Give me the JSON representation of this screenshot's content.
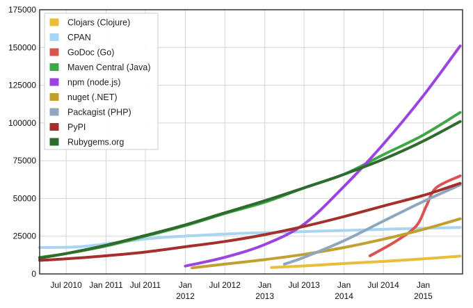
{
  "chart_data": {
    "type": "line",
    "title": "",
    "xlabel": "",
    "ylabel": "",
    "xlim": [
      "2010-03-01",
      "2015-07-01"
    ],
    "ylim": [
      0,
      175000
    ],
    "grid": true,
    "legend_placement": "top-left",
    "y_ticks": [
      {
        "value": 0,
        "label": "0"
      },
      {
        "value": 25000,
        "label": "25000"
      },
      {
        "value": 50000,
        "label": "50000"
      },
      {
        "value": 75000,
        "label": "75000"
      },
      {
        "value": 100000,
        "label": "100000"
      },
      {
        "value": 125000,
        "label": "125000"
      },
      {
        "value": 150000,
        "label": "150000"
      },
      {
        "value": 175000,
        "label": "175000"
      }
    ],
    "x_ticks": [
      {
        "date": "2010-07-01",
        "label": "Jul 2010",
        "label2": ""
      },
      {
        "date": "2011-01-01",
        "label": "Jan 2011",
        "label2": ""
      },
      {
        "date": "2011-07-01",
        "label": "Jul 2011",
        "label2": ""
      },
      {
        "date": "2012-01-01",
        "label": "Jan",
        "label2": "2012"
      },
      {
        "date": "2012-07-01",
        "label": "Jul 2012",
        "label2": ""
      },
      {
        "date": "2013-01-01",
        "label": "Jan",
        "label2": "2013"
      },
      {
        "date": "2013-07-01",
        "label": "Jul 2013",
        "label2": ""
      },
      {
        "date": "2014-01-01",
        "label": "Jan",
        "label2": "2014"
      },
      {
        "date": "2014-07-01",
        "label": "Jul 2014",
        "label2": ""
      },
      {
        "date": "2015-01-01",
        "label": "Jan",
        "label2": "2015"
      }
    ],
    "series": [
      {
        "name": "Clojars (Clojure)",
        "color": "#e8be3a",
        "points": [
          [
            "2013-02-01",
            4300
          ],
          [
            "2013-07-01",
            5300
          ],
          [
            "2014-01-01",
            6900
          ],
          [
            "2014-07-01",
            8300
          ],
          [
            "2015-01-01",
            10000
          ],
          [
            "2015-06-20",
            11800
          ]
        ]
      },
      {
        "name": "CPAN",
        "color": "#a9d4f2",
        "points": [
          [
            "2010-03-01",
            17500
          ],
          [
            "2010-09-01",
            18000
          ],
          [
            "2011-03-01",
            21000
          ],
          [
            "2011-09-01",
            24000
          ],
          [
            "2012-03-01",
            25500
          ],
          [
            "2012-09-01",
            26800
          ],
          [
            "2013-03-01",
            27500
          ],
          [
            "2013-09-01",
            28300
          ],
          [
            "2014-03-01",
            29000
          ],
          [
            "2014-09-01",
            29800
          ],
          [
            "2015-06-20",
            30800
          ]
        ]
      },
      {
        "name": "GoDoc (Go)",
        "color": "#d9534f",
        "points": [
          [
            "2014-05-01",
            12000
          ],
          [
            "2014-09-01",
            22000
          ],
          [
            "2014-12-01",
            32000
          ],
          [
            "2015-01-15",
            45000
          ],
          [
            "2015-03-01",
            57000
          ],
          [
            "2015-06-20",
            65000
          ]
        ]
      },
      {
        "name": "Maven Central (Java)",
        "color": "#3fa846",
        "points": [
          [
            "2010-03-01",
            11000
          ],
          [
            "2010-07-01",
            13500
          ],
          [
            "2011-01-01",
            18500
          ],
          [
            "2011-07-01",
            25000
          ],
          [
            "2012-01-01",
            32000
          ],
          [
            "2012-07-01",
            40000
          ],
          [
            "2013-01-01",
            47500
          ],
          [
            "2013-07-01",
            57000
          ],
          [
            "2014-01-01",
            66000
          ],
          [
            "2014-07-01",
            79000
          ],
          [
            "2015-01-01",
            92000
          ],
          [
            "2015-06-20",
            107000
          ]
        ]
      },
      {
        "name": "npm (node.js)",
        "color": "#9b45de",
        "points": [
          [
            "2012-01-01",
            5200
          ],
          [
            "2012-07-01",
            11000
          ],
          [
            "2013-01-01",
            19500
          ],
          [
            "2013-07-01",
            33000
          ],
          [
            "2014-01-01",
            58000
          ],
          [
            "2014-07-01",
            86000
          ],
          [
            "2015-01-01",
            118000
          ],
          [
            "2015-06-20",
            151000
          ]
        ]
      },
      {
        "name": "nuget (.NET)",
        "color": "#c1a030",
        "points": [
          [
            "2012-02-01",
            4000
          ],
          [
            "2012-07-01",
            6500
          ],
          [
            "2013-01-01",
            9500
          ],
          [
            "2013-07-01",
            13000
          ],
          [
            "2014-01-01",
            17500
          ],
          [
            "2014-07-01",
            23000
          ],
          [
            "2015-01-01",
            29500
          ],
          [
            "2015-06-20",
            36500
          ]
        ]
      },
      {
        "name": "Packagist (PHP)",
        "color": "#8fa7be",
        "points": [
          [
            "2013-04-01",
            6500
          ],
          [
            "2013-07-01",
            11000
          ],
          [
            "2014-01-01",
            22000
          ],
          [
            "2014-07-01",
            35000
          ],
          [
            "2015-01-01",
            48000
          ],
          [
            "2015-06-20",
            59000
          ]
        ]
      },
      {
        "name": "PyPI",
        "color": "#a3302d",
        "points": [
          [
            "2010-03-01",
            9000
          ],
          [
            "2010-07-01",
            10000
          ],
          [
            "2011-01-01",
            12000
          ],
          [
            "2011-07-01",
            14500
          ],
          [
            "2012-01-01",
            18000
          ],
          [
            "2012-07-01",
            21500
          ],
          [
            "2013-01-01",
            26000
          ],
          [
            "2013-07-01",
            31500
          ],
          [
            "2014-01-01",
            38000
          ],
          [
            "2014-07-01",
            45000
          ],
          [
            "2015-01-01",
            52000
          ],
          [
            "2015-06-20",
            60000
          ]
        ]
      },
      {
        "name": "Rubygems.org",
        "color": "#2f6b2f",
        "points": [
          [
            "2010-03-01",
            10500
          ],
          [
            "2010-07-01",
            13500
          ],
          [
            "2011-01-01",
            19000
          ],
          [
            "2011-07-01",
            25500
          ],
          [
            "2012-01-01",
            32500
          ],
          [
            "2012-07-01",
            40500
          ],
          [
            "2013-01-01",
            48500
          ],
          [
            "2013-07-01",
            57000
          ],
          [
            "2014-01-01",
            66000
          ],
          [
            "2014-07-01",
            76000
          ],
          [
            "2015-01-01",
            88000
          ],
          [
            "2015-06-20",
            101000
          ]
        ]
      }
    ]
  }
}
